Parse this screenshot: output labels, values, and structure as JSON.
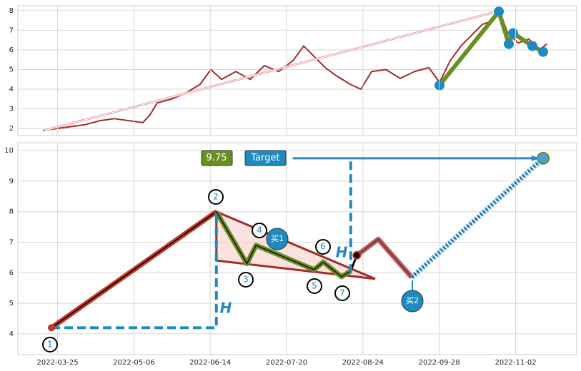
{
  "chart_data": [
    {
      "type": "line",
      "xlim": [
        25,
        807
      ],
      "ylim": [
        1.64,
        8.25
      ],
      "yticks": [
        2,
        3,
        4,
        5,
        6,
        7,
        8
      ],
      "grid": true,
      "series": [
        {
          "color": "#a52a2a",
          "x": [
            60,
            80,
            100,
            120,
            140,
            160,
            180,
            200,
            210,
            220,
            240,
            260,
            280,
            295,
            310,
            330,
            350,
            370,
            390,
            410,
            425,
            440,
            455,
            470,
            490,
            505,
            520,
            540,
            560,
            580,
            600,
            615,
            630,
            645,
            660,
            675,
            690,
            700,
            710,
            725,
            740,
            755,
            765
          ],
          "values": [
            1.9,
            2.0,
            2.1,
            2.2,
            2.4,
            2.5,
            2.4,
            2.3,
            2.7,
            3.3,
            3.5,
            3.8,
            4.25,
            5.0,
            4.5,
            4.9,
            4.5,
            5.2,
            4.9,
            5.45,
            6.2,
            5.65,
            5.1,
            4.7,
            4.25,
            4.0,
            4.9,
            5.0,
            4.55,
            4.9,
            5.1,
            4.35,
            5.45,
            6.2,
            6.75,
            7.3,
            7.5,
            7.9,
            6.9,
            6.35,
            6.55,
            6.0,
            6.3
          ]
        },
        {
          "color": "#e8a0a0",
          "x": [
            62,
            690
          ],
          "values": [
            1.9,
            7.9
          ]
        },
        {
          "color": "#6b8e23",
          "x": [
            615,
            698,
            712,
            718,
            745,
            750,
            760
          ],
          "values": [
            4.2,
            7.95,
            6.3,
            6.85,
            6.2,
            6.1,
            5.9
          ]
        }
      ]
    },
    {
      "type": "line",
      "xlim": [
        -13,
        170
      ],
      "ylim": [
        3.32,
        10.26
      ],
      "yticks": [
        4,
        5,
        6,
        7,
        8,
        9,
        10
      ],
      "grid": true,
      "xticks": [
        {
          "value": 0,
          "label": "2022-03-25"
        },
        {
          "value": 25,
          "label": "2022-05-06"
        },
        {
          "value": 50,
          "label": "2022-06-14"
        },
        {
          "value": 75,
          "label": "2022-07-20"
        },
        {
          "value": 100,
          "label": "2022-08-24"
        },
        {
          "value": 125,
          "label": "2022-09-28"
        },
        {
          "value": 150,
          "label": "2022-11-02"
        }
      ],
      "series": [
        {
          "color": "#c0392b",
          "x": [
            -2,
            52
          ],
          "values": [
            4.2,
            8.0
          ]
        },
        {
          "color": "#6b8e23",
          "x": [
            52,
            62,
            65,
            84,
            87,
            93,
            96
          ],
          "values": [
            8.0,
            6.3,
            6.9,
            6.1,
            6.35,
            5.87,
            6.06
          ]
        },
        {
          "color": "#000000",
          "x": [
            96,
            98
          ],
          "values": [
            6.06,
            6.57
          ]
        },
        {
          "color": "#b85c5c",
          "x": [
            98,
            105,
            116
          ],
          "values": [
            6.57,
            7.1,
            5.85
          ]
        },
        {
          "color": "#4a9fd8",
          "x": [
            116,
            159
          ],
          "values": [
            5.85,
            9.75
          ]
        },
        {
          "color": "#1f8ac0",
          "x": [
            -2,
            52,
            52
          ],
          "values": [
            4.2,
            4.2,
            8.0
          ]
        },
        {
          "color": "#1f8ac0",
          "x": [
            96,
            96
          ],
          "values": [
            6.0,
            9.75
          ]
        },
        {
          "color": "#2e86c1",
          "x": [
            77,
            158
          ],
          "values": [
            9.75,
            9.75
          ]
        }
      ],
      "triangle": {
        "x": [
          52,
          104,
          52
        ],
        "values": [
          8.0,
          5.8,
          6.4
        ],
        "color": "#f5c6bd"
      },
      "annotations": {
        "target_value": "9.75",
        "target": "Target",
        "h": "H",
        "buy1": "买1",
        "buy2": "买2",
        "waves": [
          "1",
          "2",
          "3",
          "4",
          "5",
          "6",
          "7"
        ]
      }
    }
  ]
}
